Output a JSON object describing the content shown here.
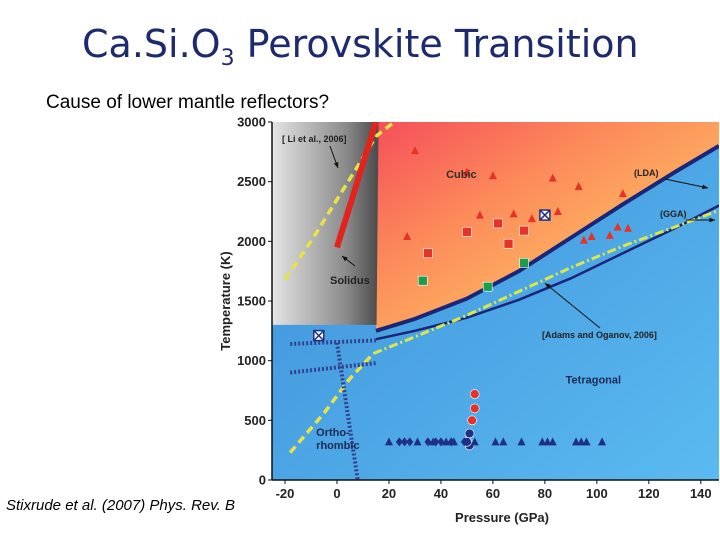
{
  "slide": {
    "title_main": "Ca.Si.O",
    "title_sub": "3",
    "title_rest": " Perovskite Transition",
    "subtitle": "Cause of lower mantle reflectors?",
    "citation": "Stixrude et al. (2007) Phys. Rev. B"
  },
  "colors": {
    "title": "#1d2a6e",
    "cubic_field": "#fbc96a",
    "tetragonal_field": "#4aa3e0",
    "solid_gray": "#9a9a9a",
    "red_marker": "#e53328",
    "green_marker": "#1b9e49",
    "blue_marker": "#1f2f86",
    "lda_boundary": "#1a2678",
    "gga_boundary": "#1a2678",
    "adams_oganov_boundary": "#d8e84a",
    "li_boundary": "#e6e24a",
    "solidus": "#e2241f"
  },
  "chart_data": {
    "type": "scatter",
    "xlabel": "Pressure (GPa)",
    "ylabel": "Temperature (K)",
    "xlim": [
      -25,
      147
    ],
    "ylim": [
      0,
      3000
    ],
    "xticks": [
      "-20",
      "0",
      "20",
      "40",
      "60",
      "80",
      "100",
      "120",
      "140"
    ],
    "xtick_values": [
      -20,
      0,
      20,
      40,
      60,
      80,
      100,
      120,
      140
    ],
    "yticks": [
      "0",
      "500",
      "1000",
      "1500",
      "2000",
      "2500",
      "3000"
    ],
    "ytick_values": [
      0,
      500,
      1000,
      1500,
      2000,
      2500,
      3000
    ],
    "grid": false,
    "field_labels": [
      {
        "text": "Cubic",
        "x": 42,
        "y": 2530
      },
      {
        "text": "Tetragonal",
        "x": 88,
        "y": 810
      },
      {
        "text": "Ortho-",
        "x": -8,
        "y": 370
      },
      {
        "text": "rhombic",
        "x": -8,
        "y": 260
      }
    ],
    "annotations": {
      "li": "[ Li et al., 2006]",
      "solidus": "Solidus",
      "lda": "(LDA)",
      "gga": "(GGA)",
      "adams": "[Adams and Oganov, 2006]"
    },
    "boundaries": [
      {
        "name": "LDA",
        "style": "solid",
        "x": [
          15,
          30,
          50,
          70,
          90,
          110,
          130,
          147
        ],
        "y": [
          1250,
          1350,
          1520,
          1750,
          2030,
          2310,
          2580,
          2800
        ]
      },
      {
        "name": "GGA",
        "style": "solid",
        "x": [
          15,
          30,
          50,
          70,
          90,
          110,
          130,
          147
        ],
        "y": [
          1180,
          1250,
          1360,
          1510,
          1690,
          1900,
          2110,
          2300
        ]
      },
      {
        "name": "Adams and Oganov",
        "style": "dashed",
        "x": [
          14,
          30,
          50,
          70,
          90,
          110,
          130,
          147
        ],
        "y": [
          1060,
          1200,
          1380,
          1580,
          1780,
          1960,
          2120,
          2260
        ]
      },
      {
        "name": "Li et al.",
        "style": "dashed",
        "x": [
          -20,
          -10,
          0,
          10,
          15,
          22
        ],
        "y": [
          1680,
          2000,
          2350,
          2700,
          2880,
          3000
        ]
      },
      {
        "name": "Orthorhombic-Cubic",
        "style": "dashed",
        "x": [
          -18,
          -5,
          5,
          14
        ],
        "y": [
          230,
          560,
          850,
          1060
        ]
      }
    ],
    "solidus": {
      "x": [
        0,
        15
      ],
      "y": [
        1950,
        3000
      ]
    },
    "orthorhombic_boundaries": [
      {
        "style": "hatched",
        "x": [
          -18,
          15
        ],
        "y": [
          1140,
          1170
        ]
      },
      {
        "style": "hatched",
        "x": [
          -18,
          15
        ],
        "y": [
          900,
          980
        ]
      },
      {
        "style": "hatched",
        "x": [
          0,
          8
        ],
        "y": [
          1150,
          0
        ]
      }
    ],
    "series": [
      {
        "name": "cubic-triangles",
        "marker": "triangle",
        "color": "red",
        "x": [
          27,
          30,
          50,
          55,
          60,
          68,
          75,
          83,
          85,
          93,
          95,
          98,
          105,
          108,
          110,
          112
        ],
        "y": [
          2040,
          2760,
          2580,
          2220,
          2550,
          2230,
          2190,
          2530,
          2250,
          2460,
          2010,
          2040,
          2050,
          2120,
          2400,
          2110
        ]
      },
      {
        "name": "cubic-squares",
        "marker": "square",
        "color": "red",
        "x": [
          35,
          50,
          62,
          66,
          72
        ],
        "y": [
          1900,
          2080,
          2150,
          1980,
          2090
        ]
      },
      {
        "name": "crossed-squares",
        "marker": "crossed-square",
        "color": "blue",
        "x": [
          -7,
          80
        ],
        "y": [
          1210,
          2220
        ]
      },
      {
        "name": "green-squares",
        "marker": "square",
        "color": "green",
        "x": [
          33,
          58,
          72
        ],
        "y": [
          1670,
          1620,
          1820
        ]
      },
      {
        "name": "red-circles",
        "marker": "circle",
        "color": "red",
        "x": [
          53,
          53,
          52
        ],
        "y": [
          720,
          600,
          500
        ]
      },
      {
        "name": "blue-circles",
        "marker": "circle",
        "color": "blue",
        "x": [
          51,
          51,
          50
        ],
        "y": [
          390,
          290,
          320
        ]
      },
      {
        "name": "blue-diamonds",
        "marker": "diamond",
        "color": "blue",
        "x": [
          24,
          26,
          28,
          35,
          38,
          40,
          44,
          49
        ],
        "y": [
          320,
          320,
          320,
          320,
          320,
          320,
          320,
          320
        ]
      },
      {
        "name": "blue-triangles",
        "marker": "triangle",
        "color": "blue",
        "x": [
          20,
          31,
          37,
          42,
          45,
          53,
          61,
          64,
          71,
          79,
          81,
          83,
          92,
          94,
          96,
          102
        ],
        "y": [
          320,
          320,
          320,
          320,
          320,
          320,
          320,
          320,
          320,
          320,
          320,
          320,
          320,
          320,
          320,
          320
        ]
      }
    ]
  }
}
